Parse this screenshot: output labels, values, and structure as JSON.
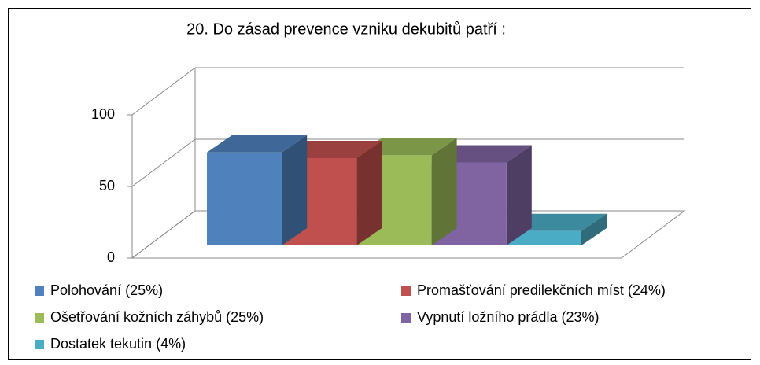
{
  "chart_data": {
    "type": "bar3d",
    "title": "20. Do zásad prevence vzniku dekubitů patří :",
    "categories": [
      "Polohování (25%)",
      "Promašťování predilekčních míst (24%)",
      "Ošetřování kožních záhybů (25%)",
      "Vypnutí ložního prádla (23%)",
      "Dostatek tekutin (4%)"
    ],
    "values": [
      65,
      61,
      63,
      58,
      10
    ],
    "colors": [
      "#4f81bd",
      "#c0504d",
      "#9bbb59",
      "#8064a2",
      "#4bacc6"
    ],
    "ylim": [
      0,
      100
    ],
    "yticks": [
      0,
      50,
      100
    ],
    "grid": true
  }
}
